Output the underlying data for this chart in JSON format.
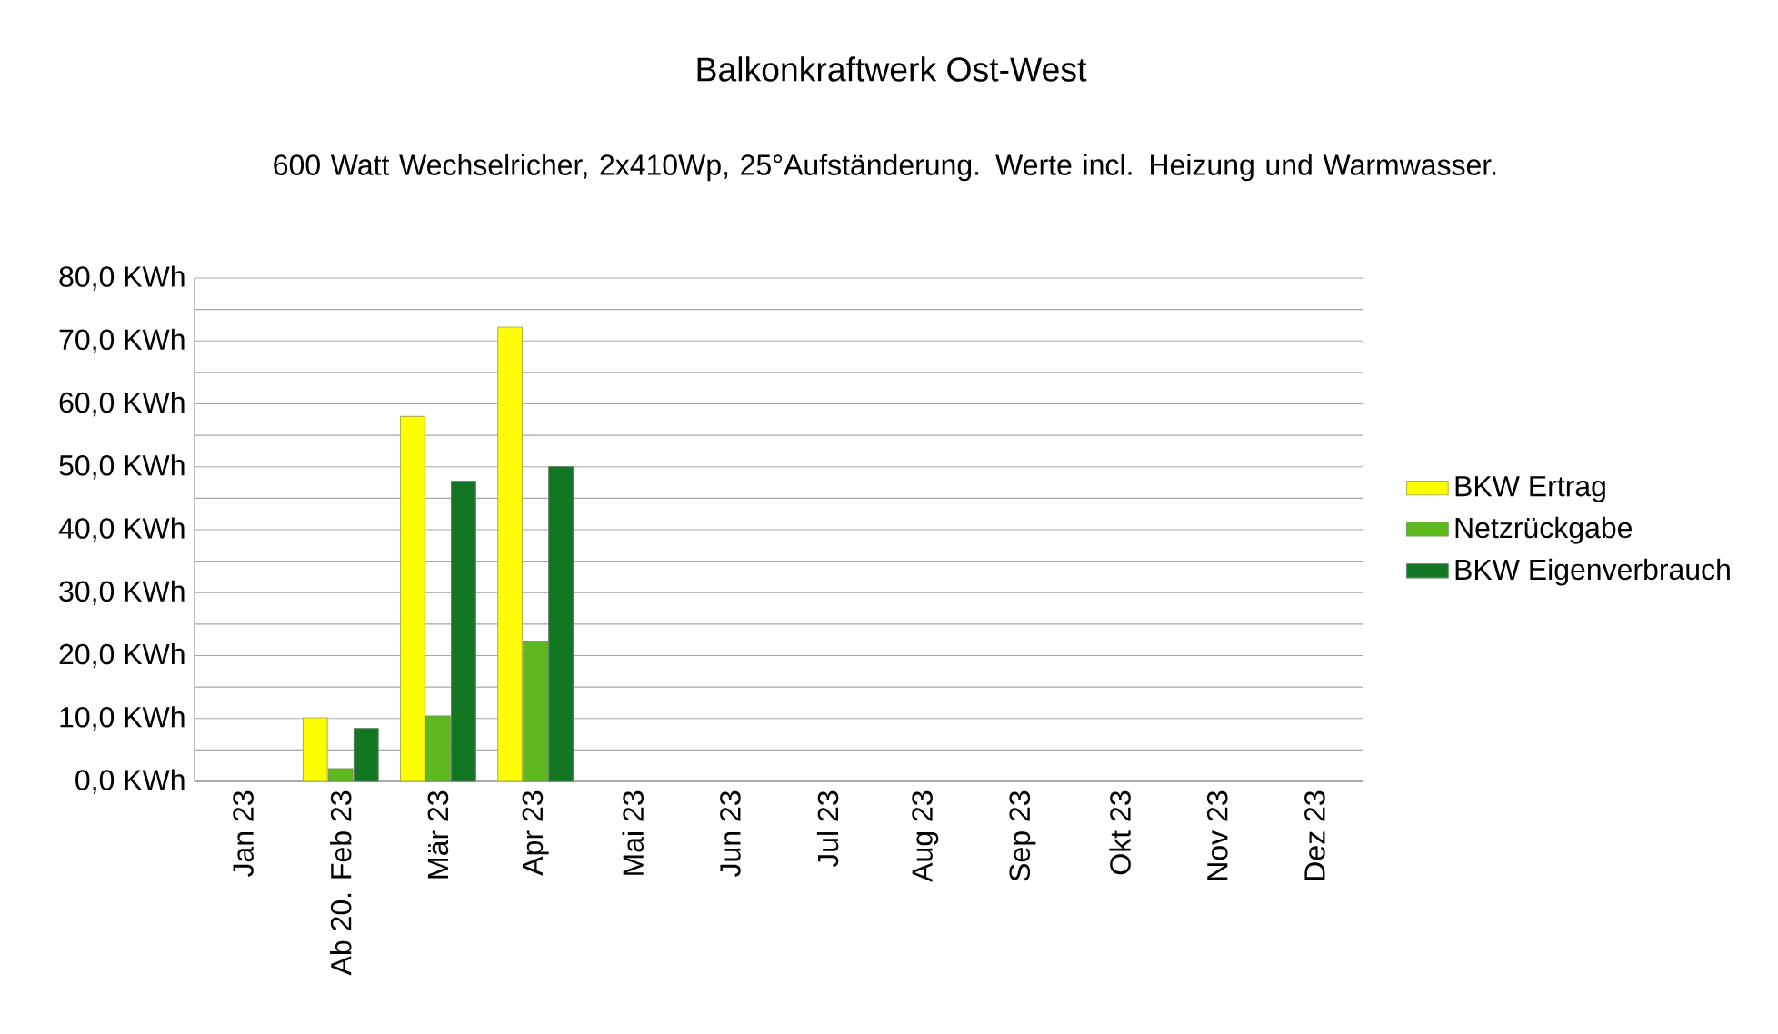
{
  "chart_data": {
    "type": "bar",
    "title": "Balkonkraftwerk Ost-West",
    "subtitle": "600 Watt Wechselricher, 2x410Wp, 25°Aufständerung. Werte incl. Heizung und Warmwasser.",
    "categories": [
      "Jan 23",
      "Ab 20. Feb 23",
      "Mär 23",
      "Apr 23",
      "Mai 23",
      "Jun 23",
      "Jul 23",
      "Aug 23",
      "Sep 23",
      "Okt 23",
      "Nov 23",
      "Dez 23"
    ],
    "series": [
      {
        "name": "BKW Ertrag",
        "color": "#ffff00",
        "values": [
          null,
          10.1,
          58.0,
          72.2,
          null,
          null,
          null,
          null,
          null,
          null,
          null,
          null
        ]
      },
      {
        "name": "Netzrückgabe",
        "color": "#5eb91e",
        "values": [
          null,
          2.0,
          10.4,
          22.3,
          null,
          null,
          null,
          null,
          null,
          null,
          null,
          null
        ]
      },
      {
        "name": "BKW Eigenverbrauch",
        "color": "#127622",
        "values": [
          null,
          8.4,
          47.7,
          50.0,
          null,
          null,
          null,
          null,
          null,
          null,
          null,
          null
        ]
      }
    ],
    "ylim": [
      0,
      80
    ],
    "yticks": [
      {
        "value": 0,
        "label": "0,0 KWh"
      },
      {
        "value": 5,
        "label": null
      },
      {
        "value": 10,
        "label": "10,0 KWh"
      },
      {
        "value": 15,
        "label": null
      },
      {
        "value": 20,
        "label": "20,0 KWh"
      },
      {
        "value": 25,
        "label": null
      },
      {
        "value": 30,
        "label": "30,0 KWh"
      },
      {
        "value": 35,
        "label": null
      },
      {
        "value": 40,
        "label": "40,0 KWh"
      },
      {
        "value": 45,
        "label": null
      },
      {
        "value": 50,
        "label": "50,0 KWh"
      },
      {
        "value": 55,
        "label": null
      },
      {
        "value": 60,
        "label": "60,0 KWh"
      },
      {
        "value": 65,
        "label": null
      },
      {
        "value": 70,
        "label": "70,0 KWh"
      },
      {
        "value": 75,
        "label": null
      },
      {
        "value": 80,
        "label": "80,0 KWh"
      }
    ],
    "grid": "y",
    "legend": "right"
  }
}
